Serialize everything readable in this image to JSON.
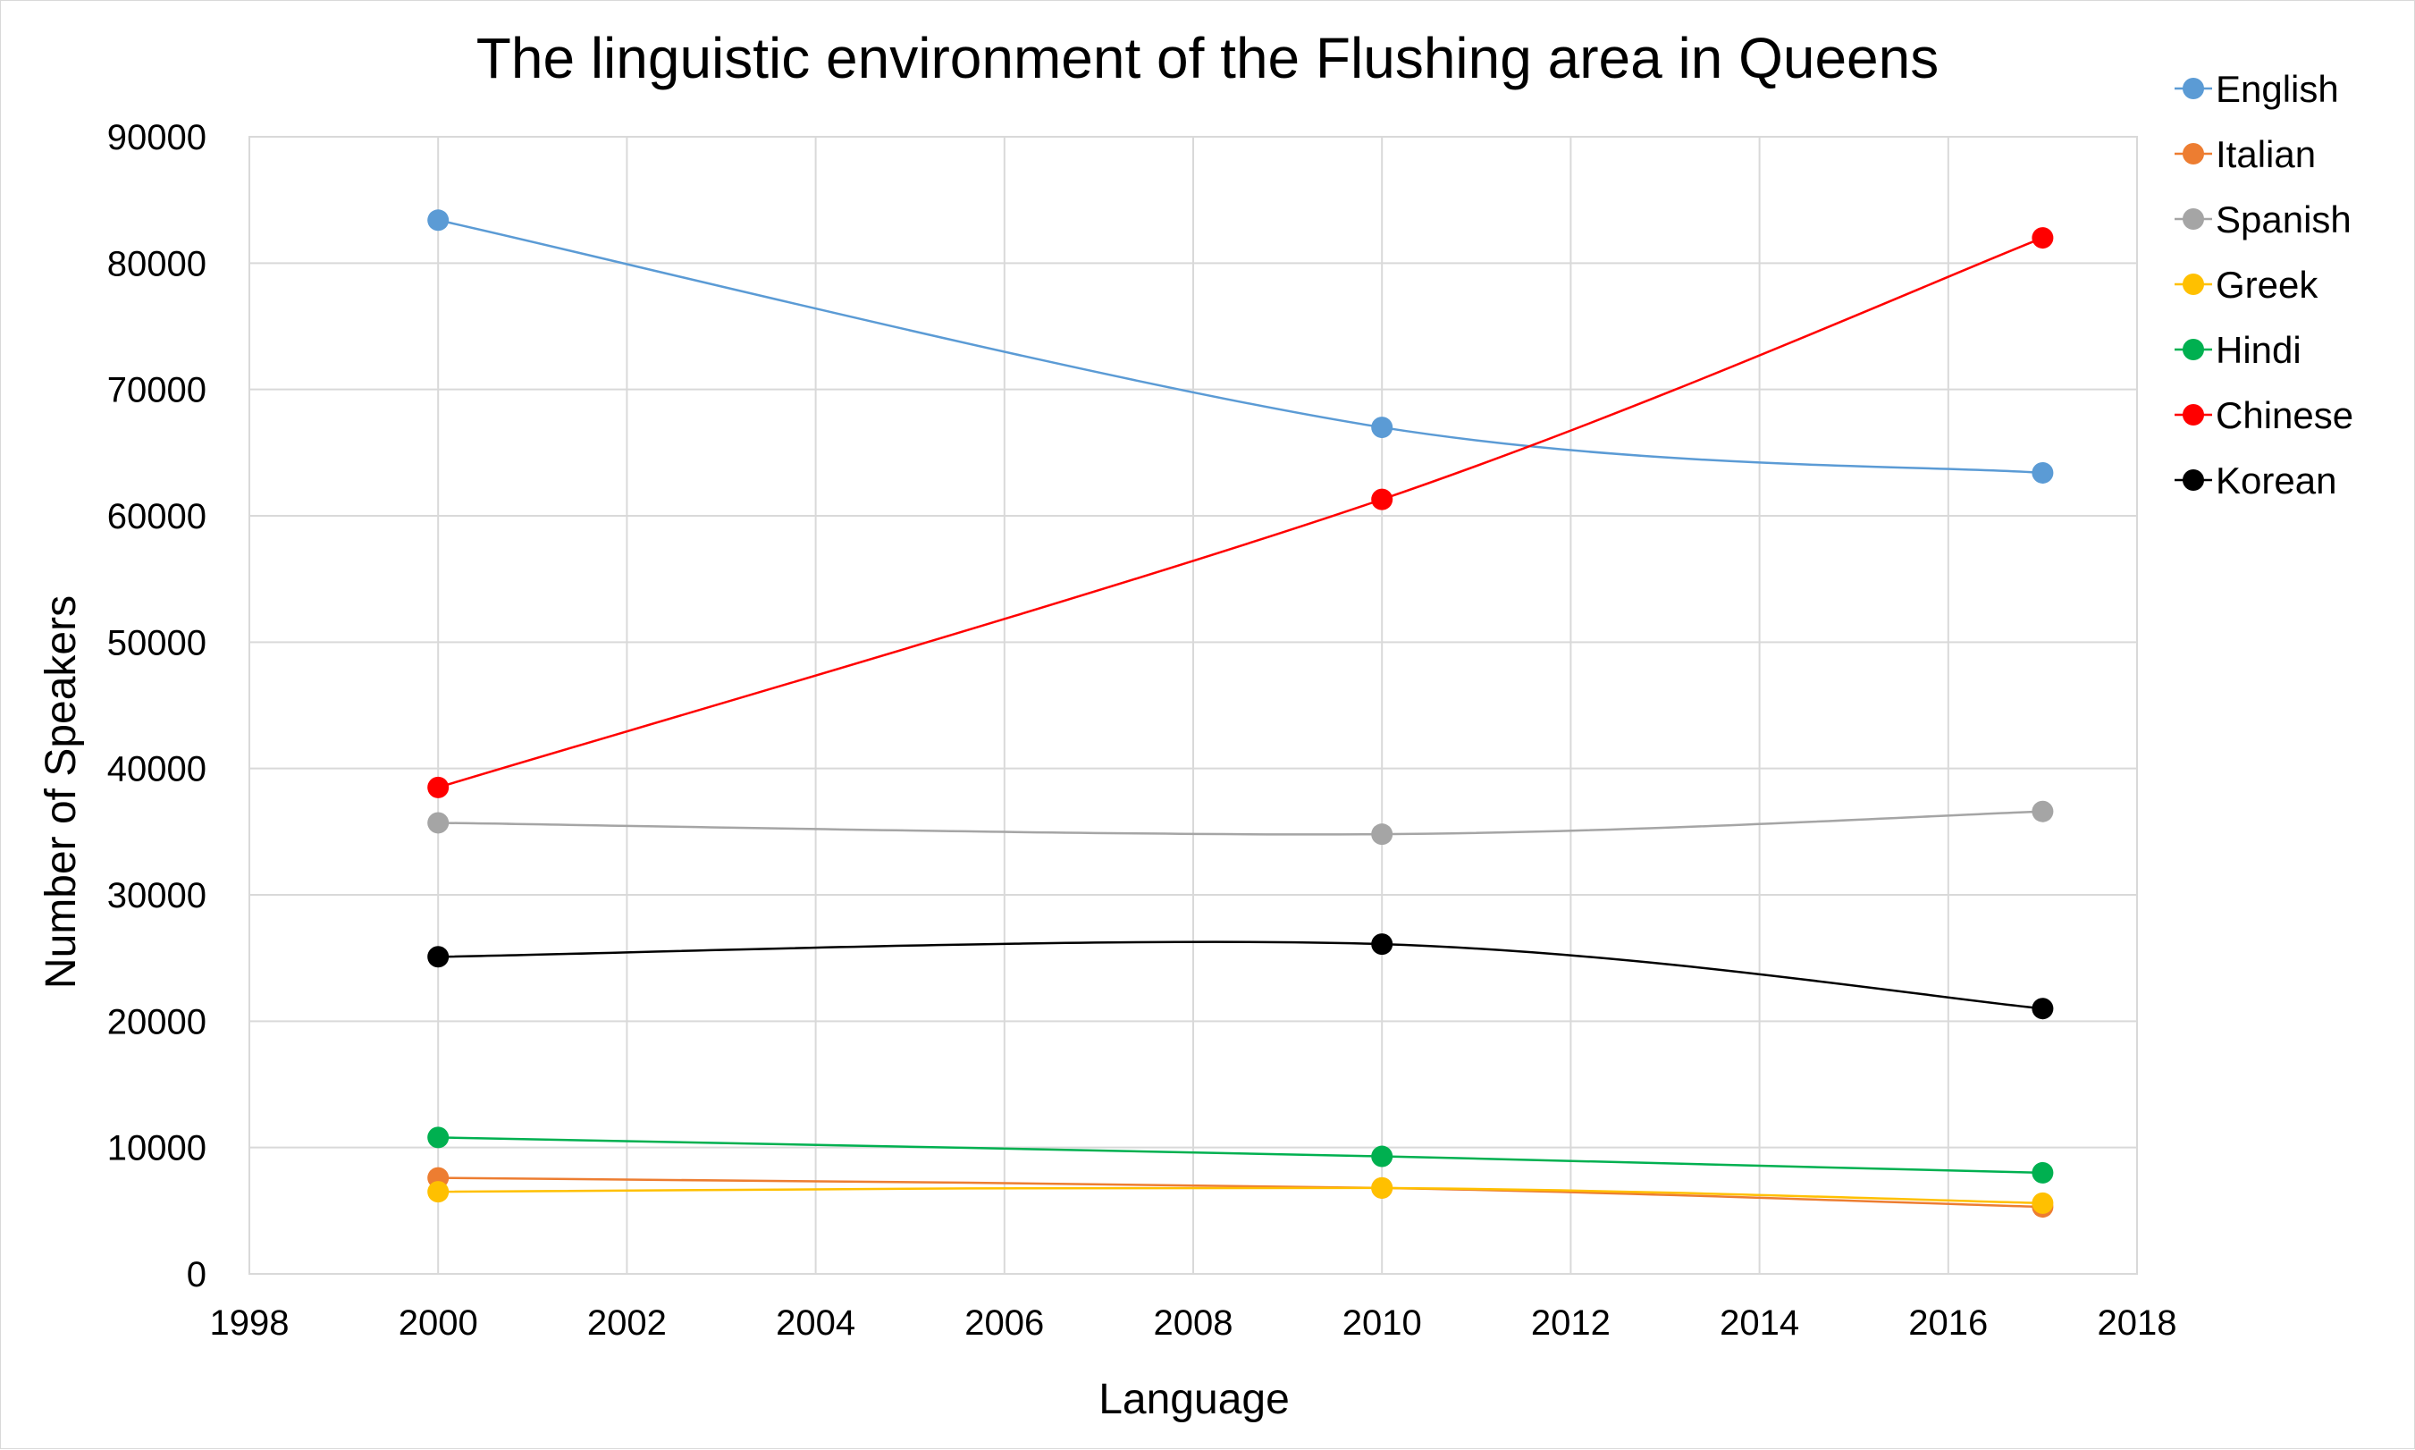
{
  "chart_data": {
    "type": "line",
    "title": "The linguistic environment of the Flushing area in Queens",
    "xlabel": "Language",
    "ylabel": "Number of Speakers",
    "xlim": [
      1998,
      2018
    ],
    "ylim": [
      0,
      90000
    ],
    "x_ticks": [
      "1998",
      "2000",
      "2002",
      "2004",
      "2006",
      "2008",
      "2010",
      "2012",
      "2014",
      "2016",
      "2018"
    ],
    "y_ticks": [
      "0",
      "10000",
      "20000",
      "30000",
      "40000",
      "50000",
      "60000",
      "70000",
      "80000",
      "90000"
    ],
    "grid": true,
    "legend_position": "right",
    "x": [
      2000,
      2010,
      2017
    ],
    "series": [
      {
        "name": "English",
        "color": "#5b9bd5",
        "values": [
          83400,
          67000,
          63400
        ]
      },
      {
        "name": "Italian",
        "color": "#ed7d31",
        "values": [
          7600,
          6800,
          5300
        ]
      },
      {
        "name": "Spanish",
        "color": "#a5a5a5",
        "values": [
          35700,
          34800,
          36600
        ]
      },
      {
        "name": "Greek",
        "color": "#ffc000",
        "values": [
          6500,
          6800,
          5600
        ]
      },
      {
        "name": "Hindi",
        "color": "#00b050",
        "values": [
          10800,
          9300,
          8000
        ]
      },
      {
        "name": "Chinese",
        "color": "#ff0000",
        "values": [
          38500,
          61300,
          82000
        ]
      },
      {
        "name": "Korean",
        "color": "#000000",
        "values": [
          25100,
          26100,
          21000
        ]
      }
    ]
  }
}
